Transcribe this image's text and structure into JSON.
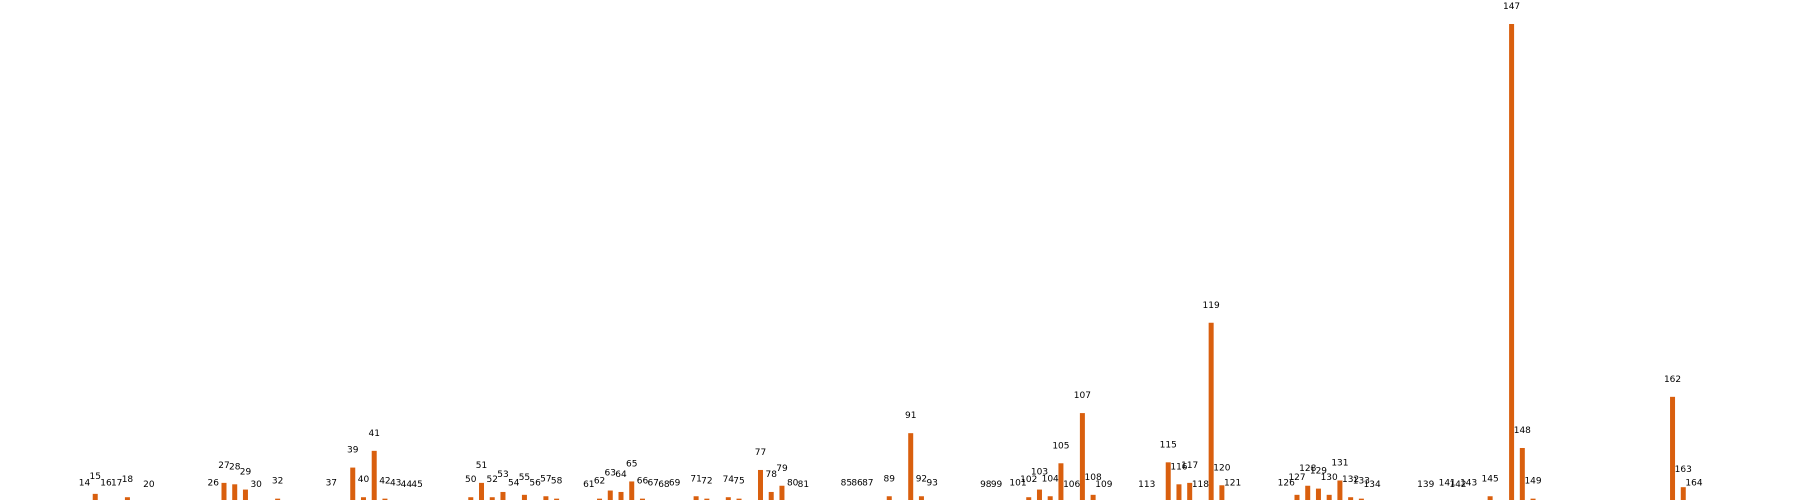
{
  "chart_data": {
    "type": "bar",
    "title": "",
    "xlabel": "",
    "ylabel": "",
    "ylim": [
      0,
      1000
    ],
    "grid": false,
    "legend": false,
    "bar_color": "#d95f0e",
    "bars": [
      {
        "label": "14",
        "value": 3
      },
      {
        "label": "15",
        "value": 17
      },
      {
        "label": "16",
        "value": 3
      },
      {
        "label": "17",
        "value": 3
      },
      {
        "label": "18",
        "value": 10
      },
      {
        "label": "20",
        "value": 0
      },
      {
        "label": "26",
        "value": 3
      },
      {
        "label": "27",
        "value": 40
      },
      {
        "label": "28",
        "value": 37
      },
      {
        "label": "29",
        "value": 26
      },
      {
        "label": "30",
        "value": 0
      },
      {
        "label": "32",
        "value": 7
      },
      {
        "label": "37",
        "value": 3
      },
      {
        "label": "39",
        "value": 72
      },
      {
        "label": "40",
        "value": 10
      },
      {
        "label": "41",
        "value": 107
      },
      {
        "label": "42",
        "value": 7
      },
      {
        "label": "43",
        "value": 3
      },
      {
        "label": "44",
        "value": 0
      },
      {
        "label": "45",
        "value": 0
      },
      {
        "label": "50",
        "value": 10
      },
      {
        "label": "51",
        "value": 40
      },
      {
        "label": "52",
        "value": 10
      },
      {
        "label": "53",
        "value": 21
      },
      {
        "label": "54",
        "value": 3
      },
      {
        "label": "55",
        "value": 15
      },
      {
        "label": "56",
        "value": 3
      },
      {
        "label": "57",
        "value": 12
      },
      {
        "label": "58",
        "value": 7
      },
      {
        "label": "61",
        "value": 0
      },
      {
        "label": "62",
        "value": 7
      },
      {
        "label": "63",
        "value": 24
      },
      {
        "label": "64",
        "value": 21
      },
      {
        "label": "65",
        "value": 43
      },
      {
        "label": "66",
        "value": 7
      },
      {
        "label": "67",
        "value": 3
      },
      {
        "label": "68",
        "value": 0
      },
      {
        "label": "69",
        "value": 3
      },
      {
        "label": "71",
        "value": 12
      },
      {
        "label": "72",
        "value": 7
      },
      {
        "label": "74",
        "value": 10
      },
      {
        "label": "75",
        "value": 7
      },
      {
        "label": "77",
        "value": 67
      },
      {
        "label": "78",
        "value": 21
      },
      {
        "label": "79",
        "value": 34
      },
      {
        "label": "80",
        "value": 3
      },
      {
        "label": "81",
        "value": 0
      },
      {
        "label": "85",
        "value": 3
      },
      {
        "label": "86",
        "value": 3
      },
      {
        "label": "87",
        "value": 3
      },
      {
        "label": "89",
        "value": 12
      },
      {
        "label": "91",
        "value": 144
      },
      {
        "label": "92",
        "value": 12
      },
      {
        "label": "93",
        "value": 3
      },
      {
        "label": "98",
        "value": 0
      },
      {
        "label": "99",
        "value": 0
      },
      {
        "label": "101",
        "value": 3
      },
      {
        "label": "102",
        "value": 10
      },
      {
        "label": "103",
        "value": 26
      },
      {
        "label": "104",
        "value": 12
      },
      {
        "label": "105",
        "value": 81
      },
      {
        "label": "106",
        "value": 0
      },
      {
        "label": "107",
        "value": 186
      },
      {
        "label": "108",
        "value": 15
      },
      {
        "label": "109",
        "value": 0
      },
      {
        "label": "113",
        "value": 0
      },
      {
        "label": "115",
        "value": 83
      },
      {
        "label": "116",
        "value": 37
      },
      {
        "label": "117",
        "value": 40
      },
      {
        "label": "118",
        "value": 0
      },
      {
        "label": "119",
        "value": 375
      },
      {
        "label": "120",
        "value": 35
      },
      {
        "label": "121",
        "value": 3
      },
      {
        "label": "126",
        "value": 3
      },
      {
        "label": "127",
        "value": 15
      },
      {
        "label": "128",
        "value": 34
      },
      {
        "label": "129",
        "value": 28
      },
      {
        "label": "130",
        "value": 15
      },
      {
        "label": "131",
        "value": 45
      },
      {
        "label": "132",
        "value": 10
      },
      {
        "label": "133",
        "value": 7
      },
      {
        "label": "134",
        "value": 0
      },
      {
        "label": "139",
        "value": 0
      },
      {
        "label": "141",
        "value": 3
      },
      {
        "label": "142",
        "value": 0
      },
      {
        "label": "143",
        "value": 3
      },
      {
        "label": "145",
        "value": 12
      },
      {
        "label": "147",
        "value": 1000
      },
      {
        "label": "148",
        "value": 113
      },
      {
        "label": "149",
        "value": 7
      },
      {
        "label": "162",
        "value": 220
      },
      {
        "label": "163",
        "value": 31
      },
      {
        "label": "164",
        "value": 3
      }
    ]
  }
}
